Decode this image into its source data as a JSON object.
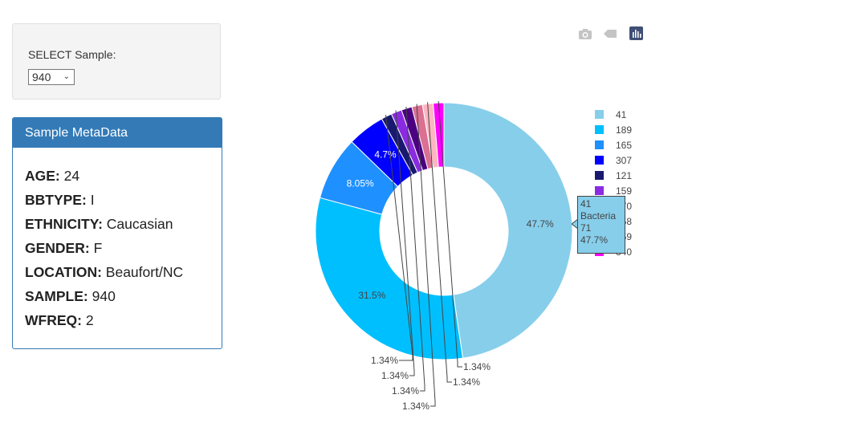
{
  "selector": {
    "label": "SELECT Sample:",
    "value": "940"
  },
  "metadata": {
    "title": "Sample MetaData",
    "rows": [
      {
        "key": "AGE:",
        "value": "24"
      },
      {
        "key": "BBTYPE:",
        "value": "I"
      },
      {
        "key": "ETHNICITY:",
        "value": "Caucasian"
      },
      {
        "key": "GENDER:",
        "value": "F"
      },
      {
        "key": "LOCATION:",
        "value": "Beaufort/NC"
      },
      {
        "key": "SAMPLE:",
        "value": "940"
      },
      {
        "key": "WFREQ:",
        "value": "2"
      }
    ]
  },
  "modebar": {
    "icons": [
      "camera-icon",
      "tag-icon",
      "plotly-logo-icon"
    ]
  },
  "tooltip": {
    "line1": "41",
    "line2": "Bacteria",
    "line3": "71",
    "line4": "47.7%"
  },
  "chart_data": {
    "type": "pie",
    "hole": 0.5,
    "slices": [
      {
        "label": "41",
        "value": 71,
        "pct_label": "47.7%",
        "color": "#87ceeb"
      },
      {
        "label": "189",
        "value": 47,
        "pct_label": "31.5%",
        "color": "#00bfff"
      },
      {
        "label": "165",
        "value": 12,
        "pct_label": "8.05%",
        "color": "#1e90ff"
      },
      {
        "label": "307",
        "value": 7,
        "pct_label": "4.7%",
        "color": "#0000ff"
      },
      {
        "label": "121",
        "value": 2,
        "pct_label": "1.34%",
        "color": "#191970"
      },
      {
        "label": "159",
        "value": 2,
        "pct_label": "1.34%",
        "color": "#8a2be2"
      },
      {
        "label": "170",
        "value": 2,
        "pct_label": "1.34%",
        "color": "#4b0082"
      },
      {
        "label": "258",
        "value": 2,
        "pct_label": "1.34%",
        "color": "#db7093"
      },
      {
        "label": "259",
        "value": 2,
        "pct_label": "1.34%",
        "color": "#ffb6c1"
      },
      {
        "label": "340",
        "value": 2,
        "pct_label": "1.34%",
        "color": "#ff00ff"
      }
    ],
    "legend_position": "right"
  }
}
